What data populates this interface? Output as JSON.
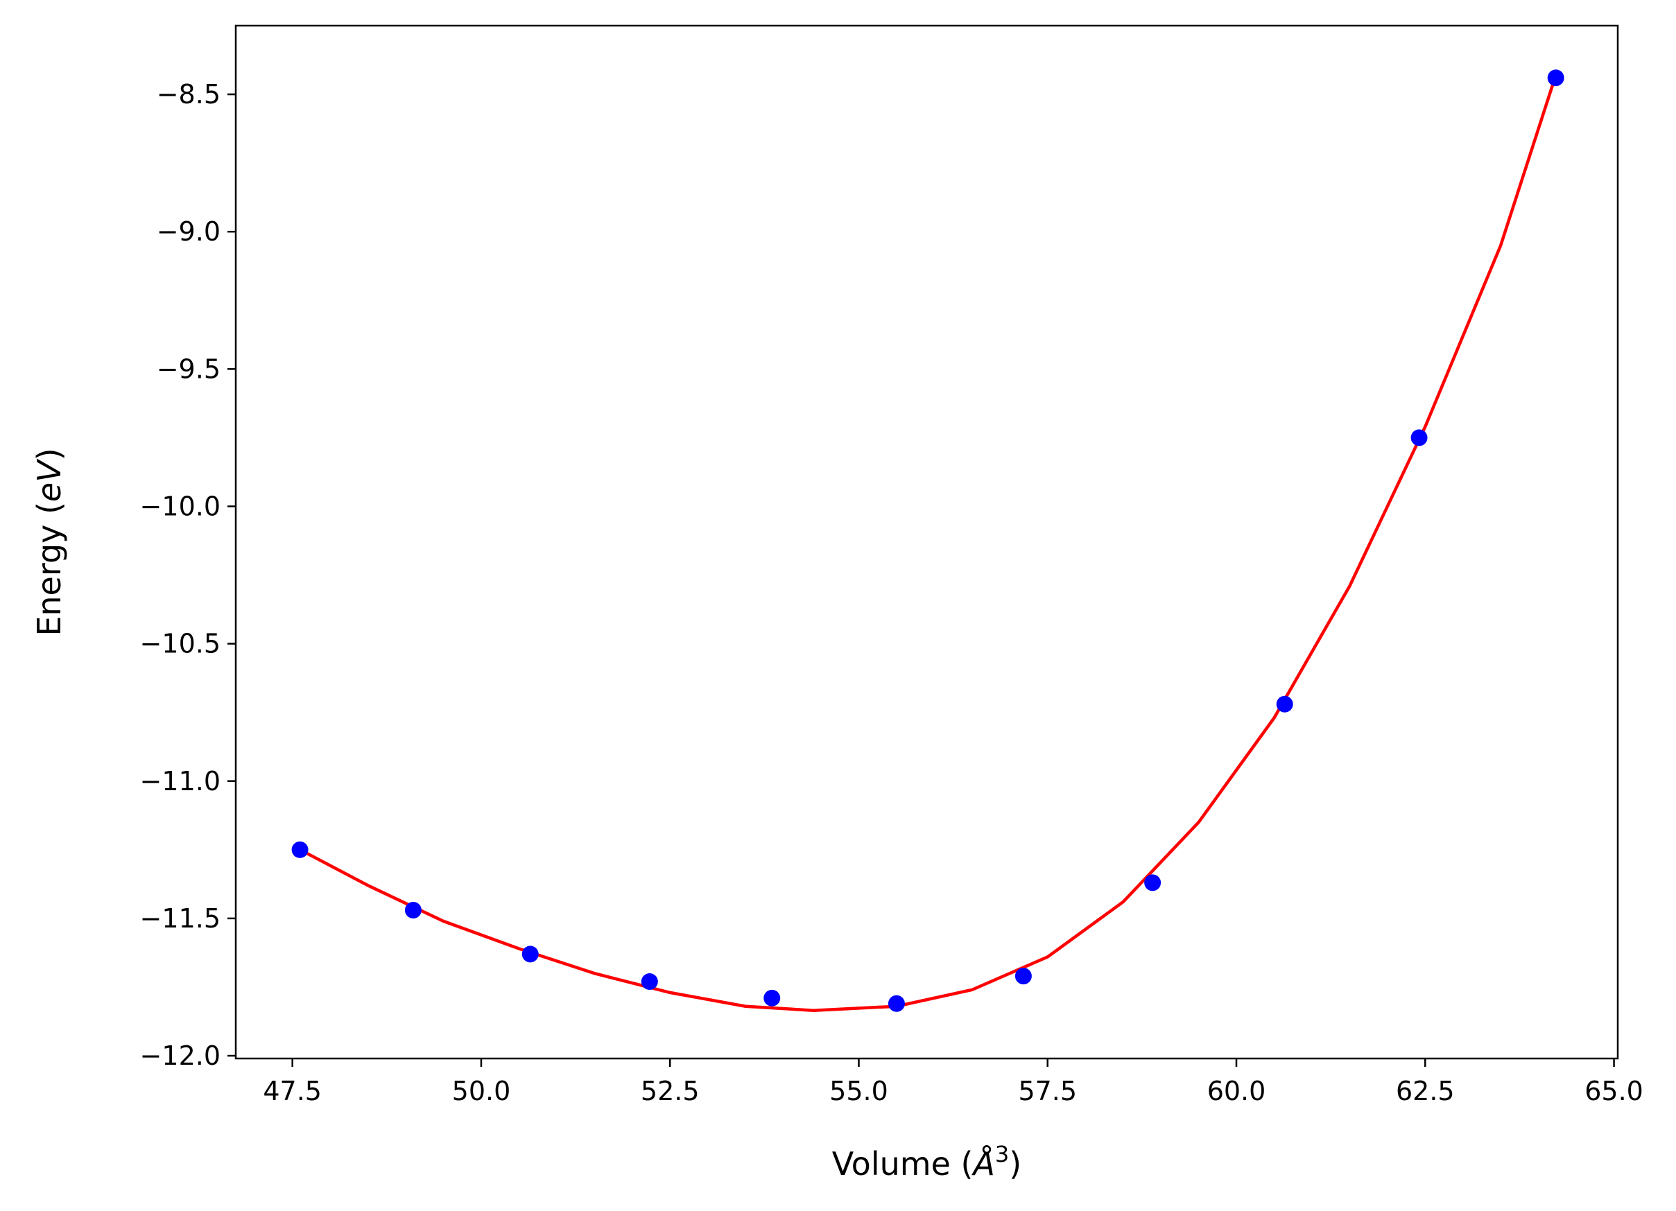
{
  "chart_data": {
    "type": "scatter",
    "title": "",
    "xlabel": "Volume ($\\AA^3$)",
    "xlabel_parts": {
      "before": "Volume (",
      "italic": "Å",
      "sup": "3",
      "after": ")"
    },
    "ylabel": "Energy ($eV$)",
    "ylabel_parts": {
      "before": "Energy (",
      "italic": "eV",
      "after": ")"
    },
    "xlim": [
      46.75,
      65.05
    ],
    "ylim": [
      -12.01,
      -8.25
    ],
    "x_ticks": [
      47.5,
      50.0,
      52.5,
      55.0,
      57.5,
      60.0,
      62.5,
      65.0
    ],
    "x_tick_labels": [
      "47.5",
      "50.0",
      "52.5",
      "55.0",
      "57.5",
      "60.0",
      "62.5",
      "65.0"
    ],
    "y_ticks": [
      -12.0,
      -11.5,
      -11.0,
      -10.5,
      -10.0,
      -9.5,
      -9.0,
      -8.5
    ],
    "y_tick_labels": [
      "−12.0",
      "−11.5",
      "−11.0",
      "−10.5",
      "−10.0",
      "−9.5",
      "−9.0",
      "−8.5"
    ],
    "grid": false,
    "series": [
      {
        "kind": "points",
        "color": "#0000ff",
        "x": [
          47.6,
          49.1,
          50.65,
          52.23,
          53.85,
          55.5,
          57.18,
          58.89,
          60.64,
          62.42,
          64.23
        ],
        "y": [
          -11.25,
          -11.47,
          -11.63,
          -11.73,
          -11.79,
          -11.81,
          -11.71,
          -11.37,
          -10.72,
          -9.75,
          -8.44
        ]
      },
      {
        "kind": "fit-line",
        "color": "#ff0000",
        "x": [
          47.6,
          48.5,
          49.5,
          50.5,
          51.5,
          52.5,
          53.5,
          54.4,
          55.5,
          56.5,
          57.5,
          58.5,
          59.5,
          60.5,
          61.5,
          62.5,
          63.5,
          64.23
        ],
        "y": [
          -11.25,
          -11.38,
          -11.51,
          -11.61,
          -11.7,
          -11.77,
          -11.82,
          -11.835,
          -11.82,
          -11.76,
          -11.64,
          -11.44,
          -11.15,
          -10.77,
          -10.29,
          -9.71,
          -9.05,
          -8.43
        ]
      }
    ]
  }
}
